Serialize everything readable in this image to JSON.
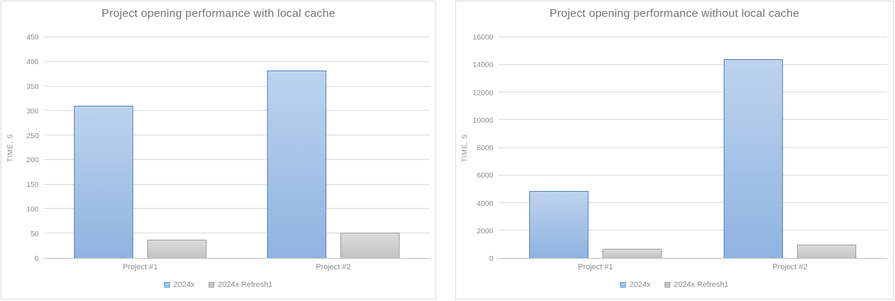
{
  "chart_data": [
    {
      "type": "bar",
      "title": "Project opening performance with local cache",
      "xlabel": "",
      "ylabel": "TIME, S",
      "categories": [
        "Project #1",
        "Project #2"
      ],
      "series": [
        {
          "name": "2024x",
          "values": [
            310,
            383
          ]
        },
        {
          "name": "2024x Refresh1",
          "values": [
            38,
            52
          ]
        }
      ],
      "ylim": [
        0,
        450
      ],
      "ytick_step": 50,
      "grid": true,
      "legend_position": "bottom"
    },
    {
      "type": "bar",
      "title": "Project opening performance without local cache",
      "xlabel": "",
      "ylabel": "TIME, S",
      "categories": [
        "Project #1",
        "Project #2"
      ],
      "series": [
        {
          "name": "2024x",
          "values": [
            4850,
            14400
          ]
        },
        {
          "name": "2024x Refresh1",
          "values": [
            680,
            970
          ]
        }
      ],
      "ylim": [
        0,
        16000
      ],
      "ytick_step": 2000,
      "grid": true,
      "legend_position": "bottom"
    }
  ],
  "colors": {
    "series": [
      {
        "name": "2024x",
        "fill_top": "#BDD3EE",
        "fill_bottom": "#8FB3E2",
        "border": "#4F81BB",
        "legend_fill": "#A5C6EA",
        "legend_border": "#5B9BD5"
      },
      {
        "name": "2024x Refresh1",
        "fill_top": "#DBDBDB",
        "fill_bottom": "#C3C3C3",
        "border": "#9E9E9E",
        "legend_fill": "#C6C6C6",
        "legend_border": "#A6A6A6"
      }
    ],
    "gridline": "#D9D9D9",
    "axis_line": "#BFBFBF",
    "text": "#8C8C8C",
    "title": "#737373",
    "panel_border": "#D9D9D9",
    "background": "#FFFFFF"
  }
}
